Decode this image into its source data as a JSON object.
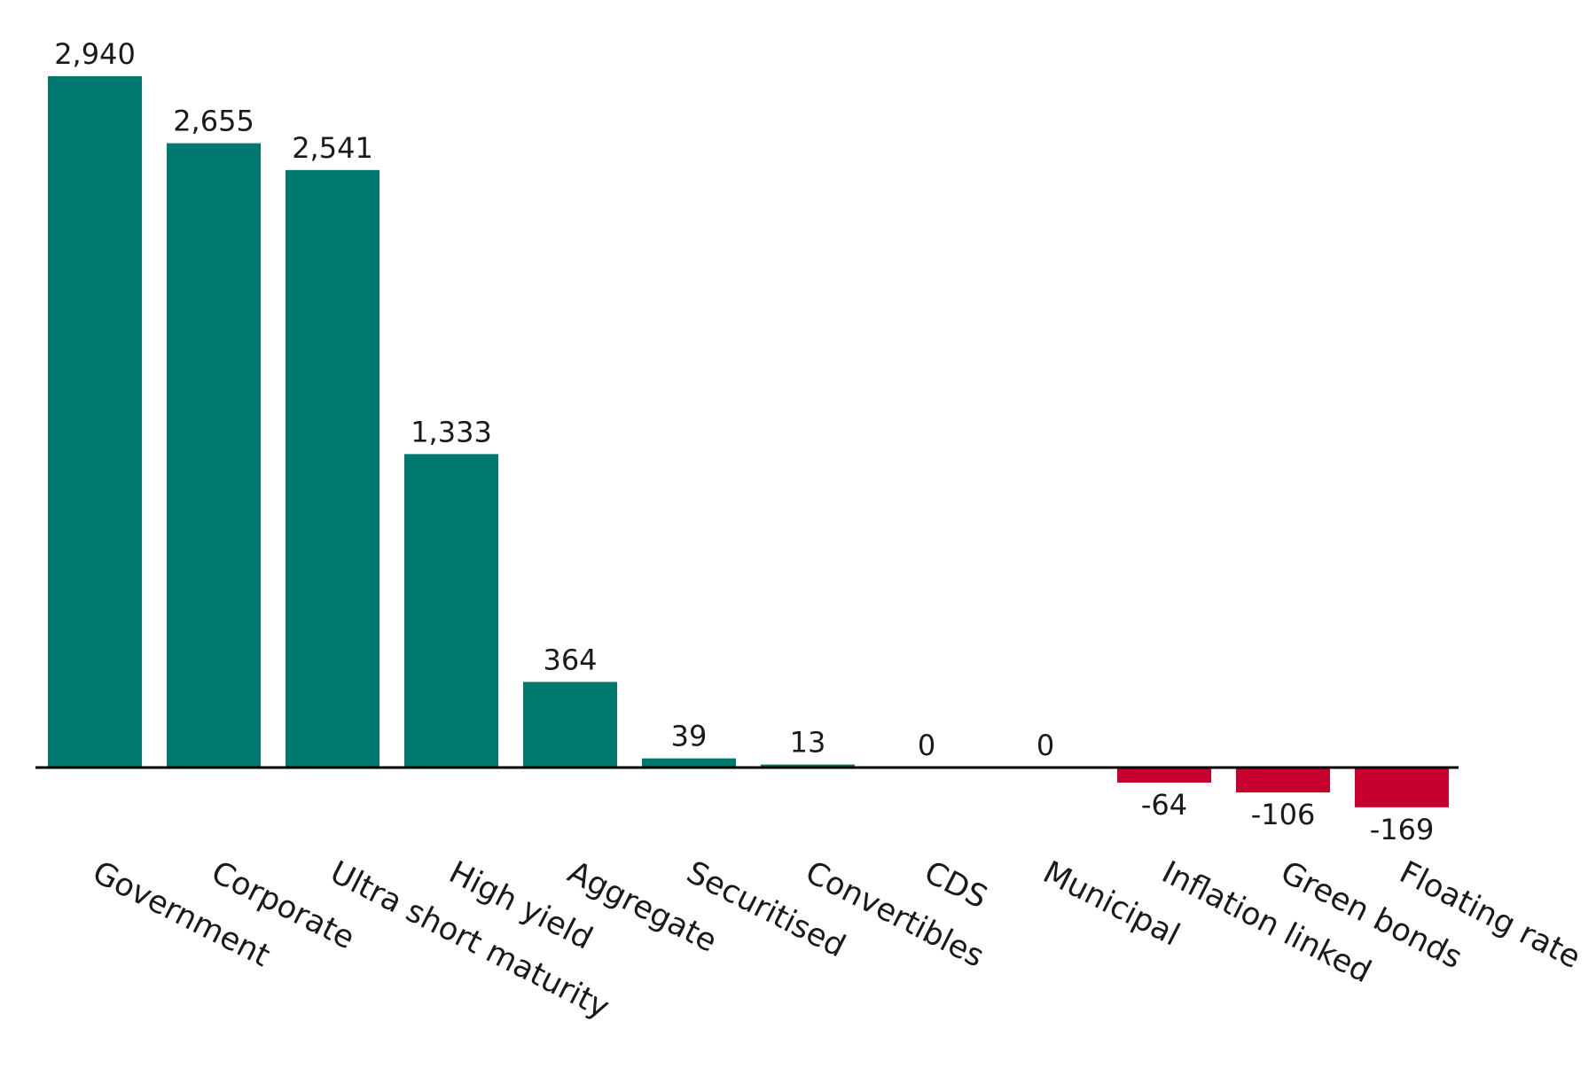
{
  "chart_data": {
    "type": "bar",
    "categories": [
      "Government",
      "Corporate",
      "Ultra short maturity",
      "High yield",
      "Aggregate",
      "Securitised",
      "Convertibles",
      "CDS",
      "Municipal",
      "Inflation linked",
      "Green bonds",
      "Floating rate"
    ],
    "values": [
      2940,
      2655,
      2541,
      1333,
      364,
      39,
      13,
      0,
      0,
      -64,
      -106,
      -169
    ],
    "value_labels": [
      "2,940",
      "2,655",
      "2,541",
      "1,333",
      "364",
      "39",
      "13",
      "0",
      "0",
      "-64",
      "-106",
      "-169"
    ],
    "ylim": [
      -169,
      2940
    ],
    "grid": false,
    "legend": "none",
    "colors": {
      "positive": "#007870",
      "negative": "#C8002D",
      "axis": "#000000"
    }
  }
}
